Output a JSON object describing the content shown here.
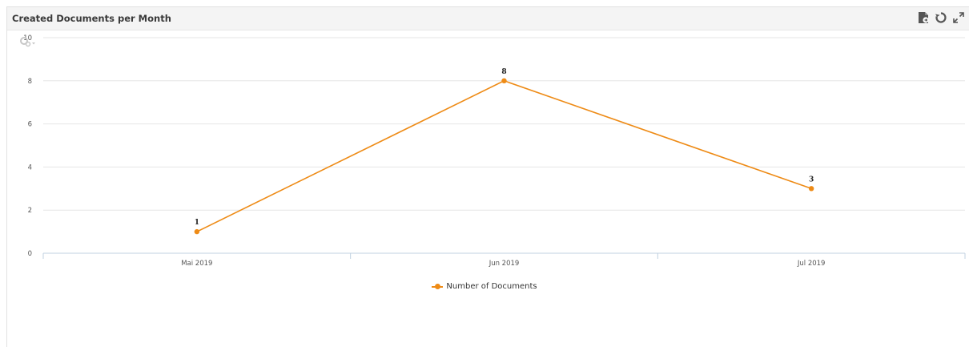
{
  "panel": {
    "title": "Created Documents per Month",
    "icons": [
      "export-pdf-icon",
      "refresh-icon",
      "expand-icon"
    ]
  },
  "chart_menu_icon": "gear-menu-icon",
  "chart_data": {
    "type": "line",
    "title": "",
    "xlabel": "",
    "ylabel": "",
    "categories": [
      "Mai 2019",
      "Jun 2019",
      "Jul 2019"
    ],
    "ylim": [
      0,
      10
    ],
    "yticks": [
      0,
      2,
      4,
      6,
      8,
      10
    ],
    "grid": true,
    "legend_position": "bottom",
    "series": [
      {
        "name": "Number of Documents",
        "values": [
          1,
          8,
          3
        ],
        "color": "#ee8b16"
      }
    ],
    "data_labels": true
  }
}
